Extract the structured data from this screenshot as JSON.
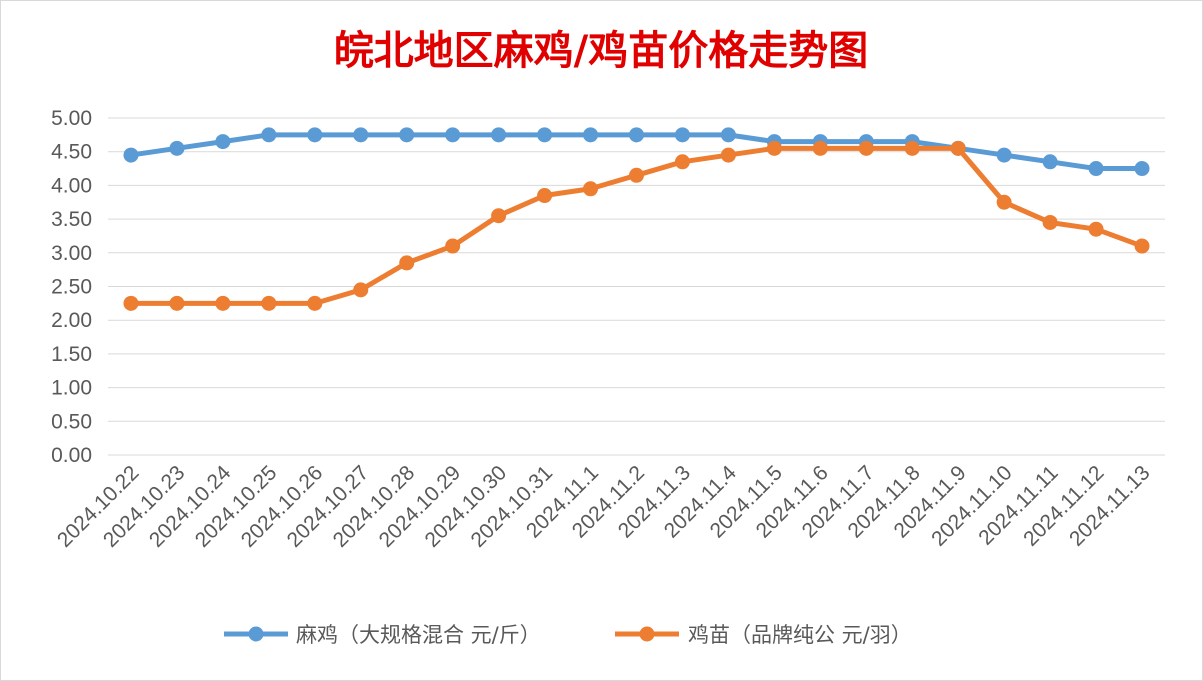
{
  "chart_data": {
    "type": "line",
    "title": "皖北地区麻鸡/鸡苗价格走势图",
    "xlabel": "",
    "ylabel": "",
    "ylim": [
      0,
      5
    ],
    "yticks": [
      "0.00",
      "0.50",
      "1.00",
      "1.50",
      "2.00",
      "2.50",
      "3.00",
      "3.50",
      "4.00",
      "4.50",
      "5.00"
    ],
    "grid": true,
    "legend_position": "bottom",
    "categories": [
      "2024.10.22",
      "2024.10.23",
      "2024.10.24",
      "2024.10.25",
      "2024.10.26",
      "2024.10.27",
      "2024.10.28",
      "2024.10.29",
      "2024.10.30",
      "2024.10.31",
      "2024.11.1",
      "2024.11.2",
      "2024.11.3",
      "2024.11.4",
      "2024.11.5",
      "2024.11.6",
      "2024.11.7",
      "2024.11.8",
      "2024.11.9",
      "2024.11.10",
      "2024.11.11",
      "2024.11.12",
      "2024.11.13"
    ],
    "series": [
      {
        "name": "麻鸡（大规格混合 元/斤）",
        "color": "#5b9bd5",
        "values": [
          4.45,
          4.55,
          4.65,
          4.75,
          4.75,
          4.75,
          4.75,
          4.75,
          4.75,
          4.75,
          4.75,
          4.75,
          4.75,
          4.75,
          4.65,
          4.65,
          4.65,
          4.65,
          4.55,
          4.45,
          4.35,
          4.25,
          4.25
        ]
      },
      {
        "name": "鸡苗（品牌纯公 元/羽）",
        "color": "#ed7d31",
        "values": [
          2.25,
          2.25,
          2.25,
          2.25,
          2.25,
          2.45,
          2.85,
          3.1,
          3.55,
          3.85,
          3.95,
          4.15,
          4.35,
          4.45,
          4.55,
          4.55,
          4.55,
          4.55,
          4.55,
          3.75,
          3.45,
          3.35,
          3.1
        ]
      }
    ]
  }
}
